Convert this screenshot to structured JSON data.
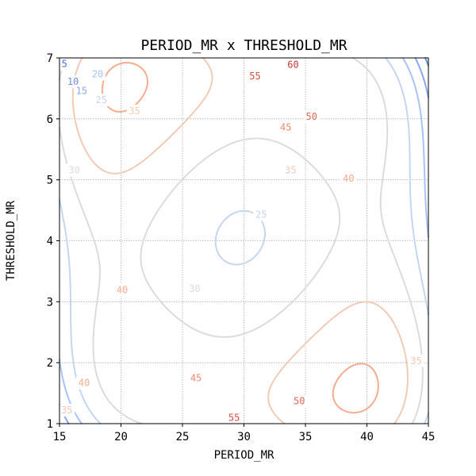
{
  "chart_data": {
    "type": "contour",
    "title": "PERIOD_MR x THRESHOLD_MR",
    "xlabel": "PERIOD_MR",
    "ylabel": "THRESHOLD_MR",
    "xlim": [
      15,
      45
    ],
    "ylim": [
      1,
      7
    ],
    "xticks": [
      "15",
      "20",
      "25",
      "30",
      "35",
      "40",
      "45"
    ],
    "yticks": [
      "1",
      "2",
      "3",
      "4",
      "5",
      "6",
      "7"
    ],
    "grid": true,
    "colormap": "coolwarm",
    "levels": [
      5,
      10,
      15,
      20,
      25,
      30,
      35,
      40,
      45,
      50,
      55,
      60
    ],
    "level_colors": {
      "5": "#4a6fe3",
      "10": "#6a8bef",
      "15": "#8aa8f7",
      "20": "#a8c3fb",
      "25": "#c6d6f1",
      "30": "#dcdcdc",
      "35": "#f2cbb7",
      "40": "#f6ad8f",
      "45": "#f08a6b",
      "50": "#e46a52",
      "55": "#d6513f",
      "60": "#c43b34"
    },
    "contour_labels": [
      {
        "level": "5",
        "x": 15.4,
        "y": 6.9
      },
      {
        "level": "10",
        "x": 16.1,
        "y": 6.61
      },
      {
        "level": "15",
        "x": 16.8,
        "y": 6.46
      },
      {
        "level": "20",
        "x": 18.1,
        "y": 6.73
      },
      {
        "level": "25",
        "x": 18.4,
        "y": 6.31
      },
      {
        "level": "30",
        "x": 16.2,
        "y": 5.16
      },
      {
        "level": "35",
        "x": 21.1,
        "y": 6.13
      },
      {
        "level": "60",
        "x": 34.0,
        "y": 6.89
      },
      {
        "level": "55",
        "x": 30.9,
        "y": 6.7
      },
      {
        "level": "50",
        "x": 35.5,
        "y": 6.04
      },
      {
        "level": "45",
        "x": 33.4,
        "y": 5.86
      },
      {
        "level": "35",
        "x": 33.8,
        "y": 5.16
      },
      {
        "level": "40",
        "x": 38.5,
        "y": 5.02
      },
      {
        "level": "25",
        "x": 31.4,
        "y": 4.43
      },
      {
        "level": "30",
        "x": 26.0,
        "y": 3.21
      },
      {
        "level": "40",
        "x": 20.1,
        "y": 3.19
      },
      {
        "level": "45",
        "x": 26.1,
        "y": 1.75
      },
      {
        "level": "50",
        "x": 34.5,
        "y": 1.37
      },
      {
        "level": "55",
        "x": 29.2,
        "y": 1.1
      },
      {
        "level": "40",
        "x": 17.0,
        "y": 1.67
      },
      {
        "level": "35",
        "x": 15.6,
        "y": 1.22
      },
      {
        "level": "35",
        "x": 44.0,
        "y": 2.03
      }
    ]
  }
}
